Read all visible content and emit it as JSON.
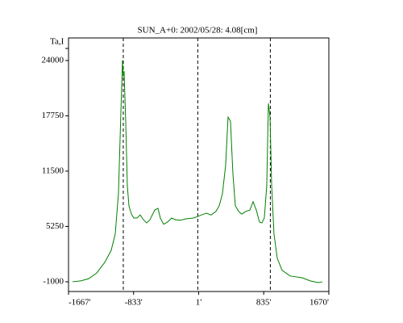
{
  "chart_data": {
    "type": "line",
    "title": "SUN_A+0: 2002/05/28: 4.08[cm]",
    "y_label": "Ta,I",
    "x": [
      -1615,
      -1512,
      -1409,
      -1305,
      -1202,
      -1120,
      -1068,
      -1027,
      -996,
      -975,
      -965,
      -955,
      -934,
      -913,
      -892,
      -861,
      -830,
      -789,
      -748,
      -706,
      -665,
      -624,
      -562,
      -520,
      -490,
      -448,
      -397,
      -345,
      -293,
      -231,
      -169,
      -66,
      -4,
      37,
      99,
      161,
      223,
      265,
      306,
      347,
      378,
      409,
      440,
      471,
      513,
      554,
      606,
      657,
      699,
      740,
      781,
      812,
      843,
      874,
      895,
      916,
      937,
      967,
      1009,
      1070,
      1174,
      1329,
      1432,
      1535,
      1587
    ],
    "series": [
      {
        "name": "Ta,I",
        "color": "#008000",
        "values": [
          -1000,
          -900,
          -650,
          0,
          1200,
          2550,
          4400,
          8950,
          18050,
          24000,
          22200,
          22800,
          17150,
          9850,
          7550,
          6650,
          6200,
          6200,
          6550,
          6000,
          5650,
          6000,
          7100,
          7300,
          6200,
          5500,
          5750,
          6200,
          6000,
          5950,
          6100,
          6200,
          6400,
          6550,
          6750,
          6550,
          6950,
          7600,
          8950,
          12150,
          17600,
          17150,
          11250,
          7600,
          6950,
          6650,
          6950,
          7100,
          8050,
          7100,
          5750,
          5650,
          6200,
          9850,
          19150,
          17600,
          9850,
          4400,
          1650,
          300,
          -350,
          -550,
          -900,
          -1100,
          -1000
        ]
      }
    ],
    "vlines": [
      -965,
      -10,
      920
    ],
    "xlim": [
      -1667,
      1670
    ],
    "ylim": [
      -2100,
      26550
    ],
    "xticks": [
      {
        "value": -1667,
        "label": "-1667'"
      },
      {
        "value": -833,
        "label": "-833'"
      },
      {
        "value": 1,
        "label": "1'"
      },
      {
        "value": 835,
        "label": "835'"
      },
      {
        "value": 1670,
        "label": "1670'"
      }
    ],
    "yticks": [
      -1000,
      5250,
      11500,
      17750,
      24000
    ]
  }
}
